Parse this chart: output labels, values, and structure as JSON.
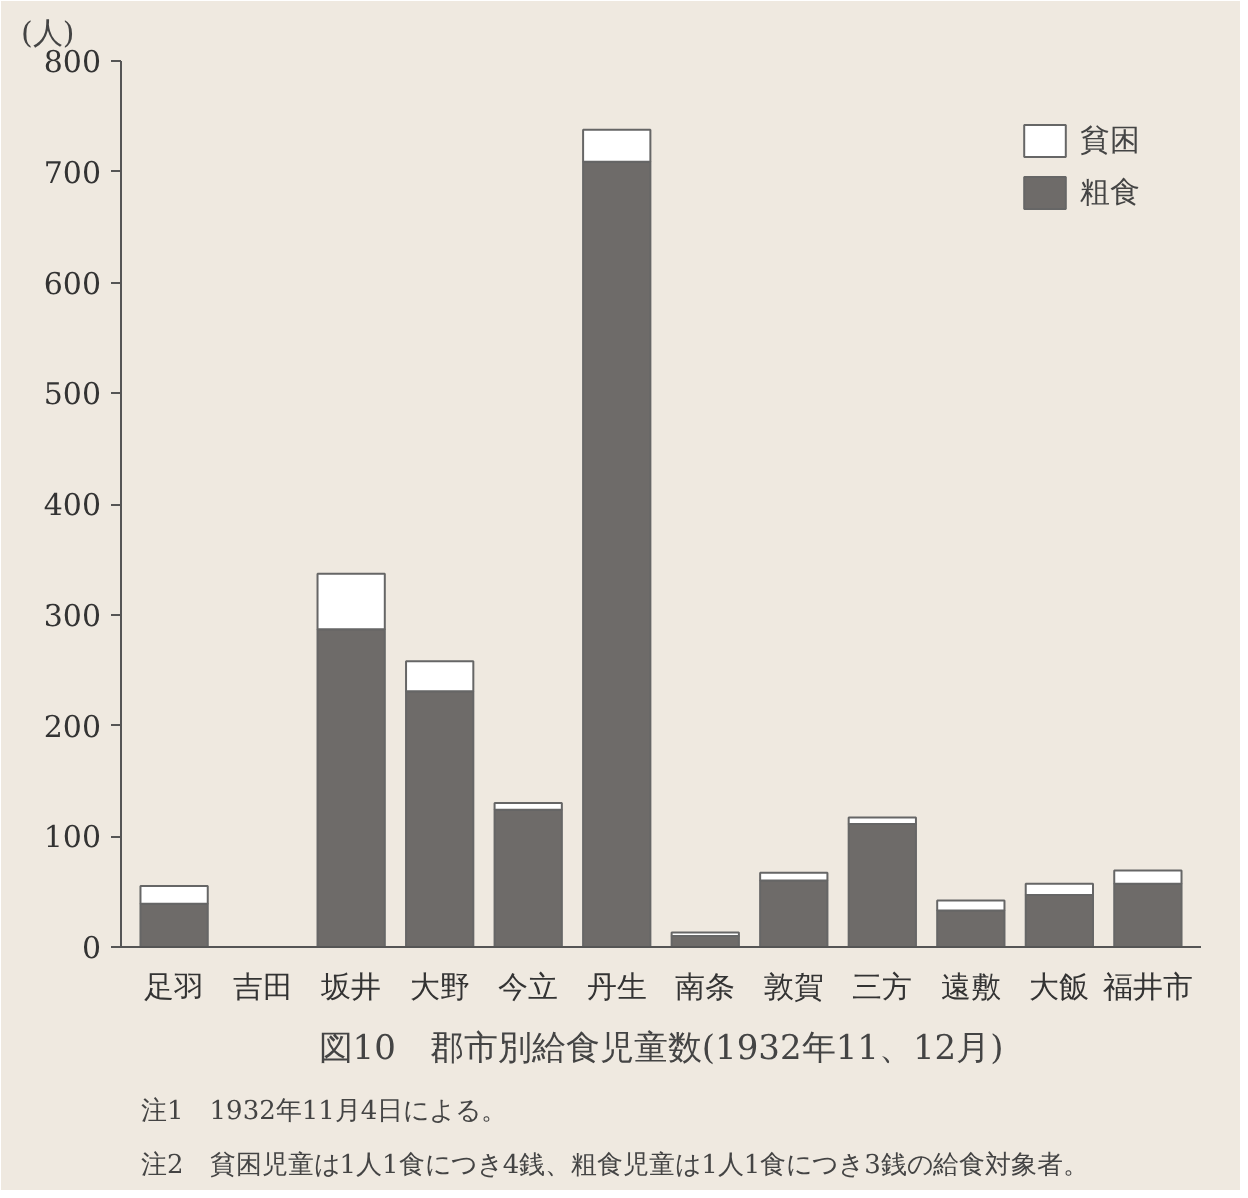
{
  "chart_data": {
    "type": "bar",
    "stacked": true,
    "title": "図10　郡市別給食児童数(1932年11、12月)",
    "ylabel": "(人)",
    "categories": [
      "足羽",
      "吉田",
      "坂井",
      "大野",
      "今立",
      "丹生",
      "南条",
      "敦賀",
      "三方",
      "遠敷",
      "大飯",
      "福井市"
    ],
    "series": [
      {
        "name": "粗食",
        "color": "#6e6b69",
        "values": [
          39,
          0,
          287,
          231,
          124,
          709,
          10,
          60,
          111,
          33,
          47,
          57
        ]
      },
      {
        "name": "貧困",
        "color": "#ffffff",
        "values": [
          16,
          0,
          50,
          27,
          6,
          29,
          3,
          7,
          6,
          9,
          10,
          12
        ]
      }
    ],
    "ylim": [
      0,
      800
    ],
    "yticks": [
      0,
      100,
      200,
      300,
      400,
      500,
      600,
      700,
      800
    ],
    "grid": false,
    "legend": "top right",
    "annotations": [
      "注1　1932年11月4日による。",
      "注2　貧困児童は1人1食につき4銭、粗食児童は1人1食につき3銭の給食対象者。"
    ]
  }
}
